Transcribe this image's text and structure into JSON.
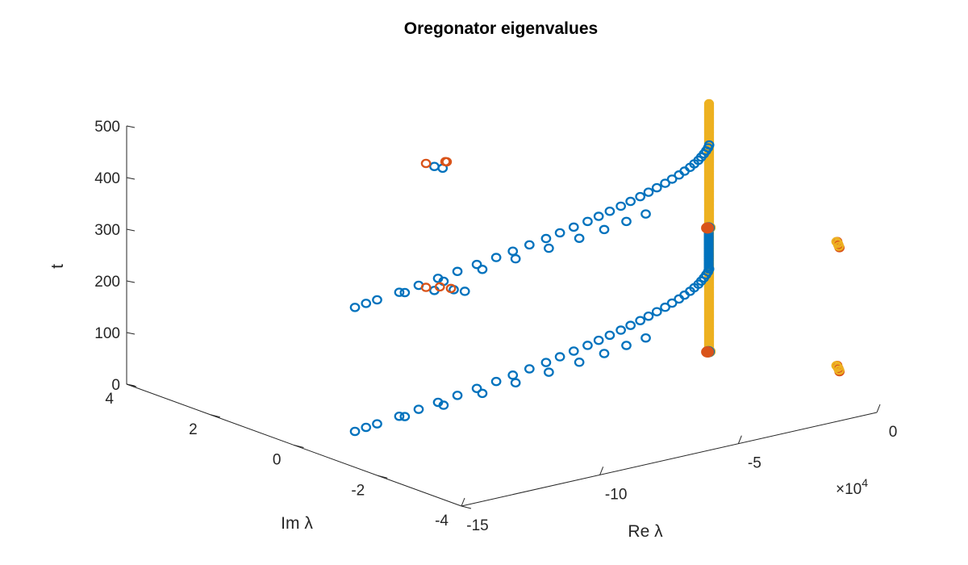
{
  "chart_data": {
    "type": "scatter",
    "title": "Oregonator eigenvalues",
    "view": "3d",
    "axes": {
      "x": {
        "label": "Re λ",
        "range": [
          -150000,
          0
        ],
        "ticks": [
          -15,
          -10,
          -5,
          0
        ],
        "tick_labels": [
          "-15",
          "-10",
          "-5",
          "0"
        ],
        "exponent_label": "×10",
        "exponent": "4"
      },
      "y": {
        "label": "Im λ",
        "range": [
          -4,
          4
        ],
        "ticks": [
          -4,
          -2,
          0,
          2,
          4
        ],
        "tick_labels": [
          "-4",
          "-2",
          "0",
          "2",
          "4"
        ]
      },
      "z": {
        "label": "t",
        "range": [
          0,
          500
        ],
        "ticks": [
          0,
          100,
          200,
          300,
          400,
          500
        ],
        "tick_labels": [
          "0",
          "100",
          "200",
          "300",
          "400",
          "500"
        ]
      }
    },
    "grid": false,
    "legend": "none",
    "marker": "open-circle",
    "colors": [
      "#0072BD",
      "#D95319",
      "#EDB120"
    ],
    "series": [
      {
        "color": "#0072BD",
        "points": [
          [
            -128000,
            0,
            0
          ],
          [
            -120000,
            0,
            5
          ],
          [
            -112000,
            0,
            10
          ],
          [
            -105000,
            0,
            15
          ],
          [
            -98000,
            0,
            20
          ],
          [
            -91000,
            0,
            25
          ],
          [
            -84000,
            0,
            30
          ],
          [
            -77000,
            0,
            35
          ],
          [
            -71000,
            0,
            40
          ],
          [
            -65000,
            0,
            45
          ],
          [
            -59000,
            0,
            50
          ],
          [
            -54000,
            0,
            55
          ],
          [
            -49000,
            0,
            60
          ],
          [
            -44000,
            0,
            65
          ],
          [
            -40000,
            0,
            70
          ],
          [
            -36000,
            0,
            75
          ],
          [
            -32000,
            0,
            80
          ],
          [
            -28500,
            0,
            85
          ],
          [
            -25000,
            0,
            90
          ],
          [
            -22000,
            0,
            95
          ],
          [
            -19000,
            0,
            100
          ],
          [
            -16000,
            0,
            105
          ],
          [
            -13500,
            0,
            110
          ],
          [
            -11000,
            0,
            115
          ],
          [
            -9000,
            0,
            120
          ],
          [
            -7000,
            0,
            125
          ],
          [
            -5500,
            0,
            130
          ],
          [
            -4000,
            0,
            135
          ],
          [
            -3000,
            0,
            140
          ],
          [
            -2000,
            0,
            145
          ],
          [
            -1200,
            0,
            150
          ],
          [
            -500,
            0,
            155
          ],
          [
            -100,
            0,
            160
          ],
          [
            -128000,
            0,
            240
          ],
          [
            -120000,
            0,
            245
          ],
          [
            -112000,
            0,
            250
          ],
          [
            -105000,
            0,
            255
          ],
          [
            -98000,
            0,
            260
          ],
          [
            -91000,
            0,
            265
          ],
          [
            -84000,
            0,
            270
          ],
          [
            -77000,
            0,
            275
          ],
          [
            -71000,
            0,
            280
          ],
          [
            -65000,
            0,
            285
          ],
          [
            -59000,
            0,
            290
          ],
          [
            -54000,
            0,
            295
          ],
          [
            -49000,
            0,
            300
          ],
          [
            -44000,
            0,
            305
          ],
          [
            -40000,
            0,
            310
          ],
          [
            -36000,
            0,
            315
          ],
          [
            -32000,
            0,
            320
          ],
          [
            -28500,
            0,
            325
          ],
          [
            -25000,
            0,
            330
          ],
          [
            -22000,
            0,
            335
          ],
          [
            -19000,
            0,
            340
          ],
          [
            -16000,
            0,
            345
          ],
          [
            -13500,
            0,
            350
          ],
          [
            -11000,
            0,
            355
          ],
          [
            -9000,
            0,
            360
          ],
          [
            -7000,
            0,
            365
          ],
          [
            -5500,
            0,
            370
          ],
          [
            -4000,
            0,
            375
          ],
          [
            -3000,
            0,
            380
          ],
          [
            -2000,
            0,
            385
          ],
          [
            -1200,
            0,
            390
          ],
          [
            -500,
            0,
            395
          ],
          [
            -100,
            0,
            400
          ],
          [
            -124000,
            0,
            3
          ],
          [
            -110000,
            0,
            7
          ],
          [
            -96000,
            0,
            12
          ],
          [
            -82000,
            0,
            18
          ],
          [
            -70000,
            0,
            24
          ],
          [
            -58000,
            0,
            30
          ],
          [
            -47000,
            0,
            36
          ],
          [
            -38000,
            0,
            42
          ],
          [
            -30000,
            0,
            48
          ],
          [
            -23000,
            0,
            54
          ],
          [
            -124000,
            0,
            243
          ],
          [
            -110000,
            0,
            247
          ],
          [
            -96000,
            0,
            252
          ],
          [
            -82000,
            0,
            258
          ],
          [
            -70000,
            0,
            264
          ],
          [
            -58000,
            0,
            270
          ],
          [
            -47000,
            0,
            276
          ],
          [
            -38000,
            0,
            282
          ],
          [
            -30000,
            0,
            288
          ],
          [
            -23000,
            0,
            294
          ],
          [
            -54000,
            3,
            95
          ],
          [
            -47000,
            3,
            88
          ],
          [
            -43000,
            3,
            80
          ],
          [
            -54000,
            3,
            335
          ],
          [
            -51000,
            3,
            328
          ]
        ]
      },
      {
        "color": "#D95319",
        "points": [
          [
            -54000,
            3.2,
            95
          ],
          [
            -49000,
            3.2,
            90
          ],
          [
            -45000,
            3.2,
            82
          ],
          [
            -54000,
            3.2,
            335
          ],
          [
            -47000,
            3.2,
            330
          ],
          [
            -46500,
            3.2,
            329
          ],
          [
            -2200,
            -3.2,
            70
          ],
          [
            -1800,
            -3.2,
            64
          ],
          [
            -1400,
            -3.2,
            57
          ],
          [
            -2200,
            -3.2,
            310
          ],
          [
            -1800,
            -3.2,
            303
          ],
          [
            -1400,
            -3.2,
            297
          ]
        ]
      },
      {
        "color": "#EDB120",
        "points": [
          [
            -2500,
            -3.2,
            70
          ],
          [
            -2000,
            -3.2,
            66
          ],
          [
            -1500,
            -3.2,
            60
          ],
          [
            -2500,
            -3.2,
            310
          ],
          [
            -2000,
            -3.2,
            306
          ],
          [
            -1600,
            -3.2,
            300
          ]
        ]
      }
    ],
    "dense_columns": [
      {
        "color": "#EDB120",
        "re": -150,
        "im": 0,
        "t_from": 0,
        "t_to": 480,
        "step": 3
      },
      {
        "color": "#0072BD",
        "re": -250,
        "im": 0,
        "t_from": 160,
        "t_to": 240,
        "step": 4
      }
    ],
    "filled_clusters": [
      {
        "color": "#EDB120",
        "re": -100,
        "im": 0,
        "t": [
          0,
          240
        ]
      },
      {
        "color": "#0072BD",
        "re": -400,
        "im": 0,
        "t": [
          0,
          240
        ]
      },
      {
        "color": "#D95319",
        "re": -700,
        "im": 0,
        "t": [
          0,
          240
        ]
      }
    ]
  }
}
